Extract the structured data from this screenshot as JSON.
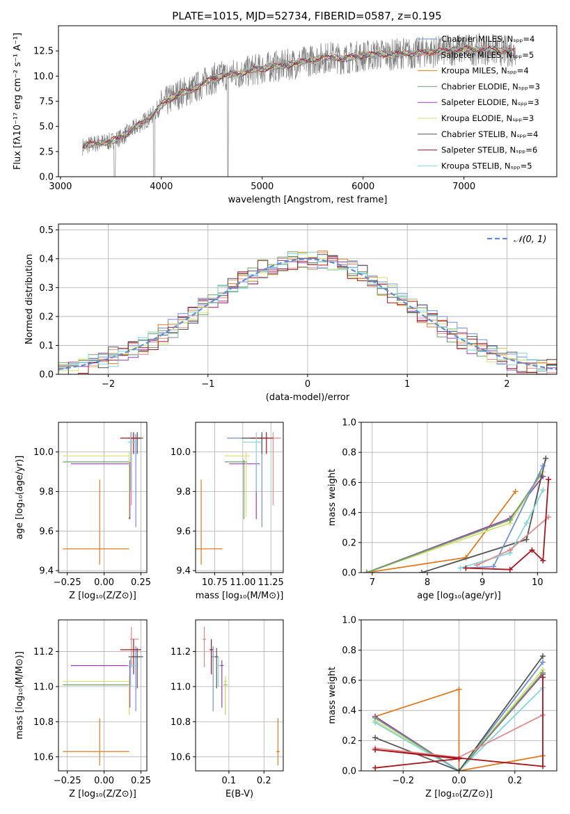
{
  "title": "PLATE=1015, MJD=52734, FIBERID=0587, z=0.195",
  "colors": {
    "chabrier_miles": "#6f8fd8",
    "salpeter_miles": "#e08a8a",
    "kroupa_miles": "#e07b20",
    "chabrier_elodie": "#6aa36a",
    "salpeter_elodie": "#9a3fb0",
    "kroupa_elodie": "#d8df6a",
    "chabrier_stelib": "#555555",
    "salpeter_stelib": "#a8141c",
    "kroupa_stelib": "#7fd6df",
    "data": "#808080",
    "pink": "#e88ac0",
    "normal": "#5b8ed6"
  },
  "chart_data": [
    {
      "id": "spectrum",
      "type": "line",
      "xlabel": "wavelength [Angstrom, rest frame]",
      "ylabel": "Flux [fλ10⁻¹⁷ erg cm⁻² s⁻¹ A⁻¹]",
      "xlim": [
        2980,
        7920
      ],
      "ylim": [
        0,
        15
      ],
      "xticks": [
        "3000",
        "4000",
        "5000",
        "6000",
        "7000"
      ],
      "xtick_values": [
        3000,
        4000,
        5000,
        6000,
        7000
      ],
      "yticks": [
        "0.0",
        "2.5",
        "5.0",
        "7.5",
        "10.0",
        "12.5"
      ],
      "ytick_values": [
        0,
        2.5,
        5,
        7.5,
        10,
        12.5
      ],
      "x": [
        3220,
        3300,
        3400,
        3500,
        3600,
        3700,
        3800,
        3900,
        4000,
        4100,
        4200,
        4300,
        4400,
        4500,
        4600,
        4700,
        4800,
        4900,
        5000,
        5100,
        5200,
        5300,
        5400,
        5500,
        5600,
        5700,
        5800,
        5900,
        6000,
        6100,
        6200,
        6300,
        6400,
        6500,
        6600,
        6700,
        6800,
        6900,
        7000,
        7100,
        7200,
        7300,
        7400,
        7500
      ],
      "model_y": [
        3.0,
        3.2,
        3.4,
        3.5,
        3.9,
        4.6,
        5.3,
        6.0,
        7.1,
        7.8,
        8.4,
        8.6,
        9.2,
        9.7,
        10.0,
        10.2,
        10.3,
        10.6,
        10.7,
        11.0,
        11.0,
        11.2,
        11.4,
        11.6,
        11.8,
        11.9,
        11.7,
        11.9,
        12.0,
        12.1,
        12.2,
        12.1,
        12.3,
        12.2,
        12.4,
        12.4,
        12.5,
        12.6,
        12.7,
        12.6,
        12.7,
        12.6,
        12.5,
        12.4
      ],
      "legend": [
        {
          "label": "Chabrier MILES, Nₛₚₚ=4",
          "color_key": "chabrier_miles"
        },
        {
          "label": "Salpeter MILES, Nₛₚₚ=5",
          "color_key": "salpeter_miles"
        },
        {
          "label": "Kroupa MILES, Nₛₚₚ=4",
          "color_key": "kroupa_miles"
        },
        {
          "label": "Chabrier ELODIE, Nₛₚₚ=3",
          "color_key": "chabrier_elodie"
        },
        {
          "label": "Salpeter ELODIE, Nₛₚₚ=3",
          "color_key": "salpeter_elodie"
        },
        {
          "label": "Kroupa ELODIE, Nₛₚₚ=3",
          "color_key": "kroupa_elodie"
        },
        {
          "label": "Chabrier STELIB, Nₛₚₚ=4",
          "color_key": "chabrier_stelib"
        },
        {
          "label": "Salpeter STELIB, Nₛₚₚ=6",
          "color_key": "salpeter_stelib"
        },
        {
          "label": "Kroupa STELIB, Nₛₚₚ=5",
          "color_key": "kroupa_stelib"
        }
      ]
    },
    {
      "id": "residuals",
      "type": "bar",
      "xlabel": "(data-model)/error",
      "ylabel": "Normed distribution",
      "xlim": [
        -2.5,
        2.5
      ],
      "ylim": [
        0,
        0.52
      ],
      "xticks": [
        "−2",
        "−1",
        "0",
        "1",
        "2"
      ],
      "xtick_values": [
        -2,
        -1,
        0,
        1,
        2
      ],
      "yticks": [
        "0.0",
        "0.1",
        "0.2",
        "0.3",
        "0.4",
        "0.5"
      ],
      "ytick_values": [
        0,
        0.1,
        0.2,
        0.3,
        0.4,
        0.5
      ],
      "bin_width": 0.1,
      "legend_label": "𝒩(0, 1)",
      "series": [
        {
          "color_key": "chabrier_miles",
          "values": [
            0.02,
            0.03,
            0.04,
            0.05,
            0.06,
            0.07,
            0.09,
            0.1,
            0.12,
            0.14,
            0.16,
            0.19,
            0.21,
            0.23,
            0.24,
            0.26,
            0.28,
            0.3,
            0.32,
            0.34,
            0.36,
            0.37,
            0.38,
            0.39,
            0.4,
            0.4,
            0.4,
            0.39,
            0.38,
            0.37,
            0.35,
            0.34,
            0.32,
            0.3,
            0.28,
            0.26,
            0.24,
            0.22,
            0.2,
            0.18,
            0.16,
            0.14,
            0.12,
            0.1,
            0.09,
            0.07,
            0.06,
            0.05,
            0.04,
            0.03
          ]
        }
      ]
    },
    {
      "id": "age_vs_Z",
      "type": "scatter",
      "xlabel": "Z [log₁₀(Z/Z⊙)]",
      "ylabel": "age  [log₁₀(age/yr)]",
      "xlim": [
        -0.31,
        0.29
      ],
      "ylim": [
        9.39,
        10.15
      ],
      "xticks": [
        "−0.25",
        "0.00",
        "0.25"
      ],
      "xtick_values": [
        -0.25,
        0,
        0.25
      ],
      "yticks": [
        "9.4",
        "9.6",
        "9.8",
        "10.0"
      ],
      "ytick_values": [
        9.4,
        9.6,
        9.8,
        10.0
      ]
    },
    {
      "id": "age_vs_mass",
      "type": "scatter",
      "xlabel": "mass [log₁₀(M/M⊙)]",
      "xlim": [
        10.58,
        11.36
      ],
      "ylim": [
        9.39,
        10.15
      ],
      "xticks": [
        "10.75",
        "11.00",
        "11.25"
      ],
      "xtick_values": [
        10.75,
        11.0,
        11.25
      ],
      "yticks": [
        "9.4",
        "9.6",
        "9.8",
        "10.0"
      ],
      "ytick_values": [
        9.4,
        9.6,
        9.8,
        10.0
      ]
    },
    {
      "id": "weight_vs_age",
      "type": "line",
      "xlabel": "age  [log₁₀(age/yr)]",
      "ylabel": "mass weight",
      "xlim": [
        6.8,
        10.35
      ],
      "ylim": [
        0,
        1.0
      ],
      "xticks": [
        "7",
        "8",
        "9",
        "10"
      ],
      "xtick_values": [
        7,
        8,
        9,
        10
      ],
      "yticks": [
        "0.0",
        "0.2",
        "0.4",
        "0.6",
        "0.8",
        "1.0"
      ],
      "ytick_values": [
        0,
        0.2,
        0.4,
        0.6,
        0.8,
        1.0
      ]
    },
    {
      "id": "mass_vs_Z",
      "type": "scatter",
      "xlabel": "Z [log₁₀(Z/Z⊙)]",
      "ylabel": "mass [log₁₀(M/M⊙)]",
      "xlim": [
        -0.31,
        0.29
      ],
      "ylim": [
        10.52,
        11.38
      ],
      "xticks": [
        "−0.25",
        "0.00",
        "0.25"
      ],
      "xtick_values": [
        -0.25,
        0,
        0.25
      ],
      "yticks": [
        "10.6",
        "10.8",
        "11.0",
        "11.2"
      ],
      "ytick_values": [
        10.6,
        10.8,
        11.0,
        11.2
      ]
    },
    {
      "id": "mass_vs_ebv",
      "type": "scatter",
      "xlabel": "E(B-V)",
      "xlim": [
        0.005,
        0.255
      ],
      "ylim": [
        10.52,
        11.38
      ],
      "xticks": [
        "0.1",
        "0.2"
      ],
      "xtick_values": [
        0.1,
        0.2
      ],
      "yticks": [
        "10.6",
        "10.8",
        "11.0",
        "11.2"
      ],
      "ytick_values": [
        10.6,
        10.8,
        11.0,
        11.2
      ]
    },
    {
      "id": "weight_vs_Z",
      "type": "line",
      "xlabel": "Z [log₁₀(Z/Z⊙)]",
      "ylabel": "mass weight",
      "xlim": [
        -0.35,
        0.35
      ],
      "ylim": [
        0,
        1.0
      ],
      "xticks": [
        "−0.2",
        "0.0",
        "0.2"
      ],
      "xtick_values": [
        -0.2,
        0,
        0.2
      ],
      "yticks": [
        "0.0",
        "0.2",
        "0.4",
        "0.6",
        "0.8",
        "1.0"
      ],
      "ytick_values": [
        0,
        0.2,
        0.4,
        0.6,
        0.8,
        1.0
      ]
    }
  ],
  "fit_results": [
    {
      "key": "chabrier_miles",
      "Z": 0.215,
      "Zerr": [
        0.03,
        0.03
      ],
      "age": 10.07,
      "age_err": [
        0.45,
        0.02
      ],
      "mass": 11.17,
      "mass_err": [
        0.31,
        0.06
      ],
      "ebv": 0.055,
      "ebv_err": 0.01
    },
    {
      "key": "salpeter_miles",
      "Z": 0.185,
      "Zerr": [
        0.01,
        0.05
      ],
      "age": 10.07,
      "age_err": [
        0.34,
        0.03
      ],
      "mass": 11.27,
      "mass_err": [
        0.16,
        0.07
      ],
      "ebv": 0.03,
      "ebv_err": 0.01
    },
    {
      "key": "kroupa_miles",
      "Z": -0.03,
      "Zerr": [
        0.25,
        0.2
      ],
      "age": 9.51,
      "age_err": [
        0.08,
        0.35
      ],
      "mass": 10.63,
      "mass_err": [
        0.08,
        0.19
      ],
      "ebv": 0.24,
      "ebv_err": 0.01
    },
    {
      "key": "chabrier_elodie",
      "Z": 0.17,
      "Zerr": [
        0.45,
        0.0
      ],
      "age": 9.95,
      "age_err": [
        0.29,
        0.01
      ],
      "mass": 11.01,
      "mass_err": [
        0.17,
        0.03
      ],
      "ebv": 0.09,
      "ebv_err": 0.01
    },
    {
      "key": "salpeter_elodie",
      "Z": 0.175,
      "Zerr": [
        0.4,
        0.0
      ],
      "age": 9.94,
      "age_err": [
        0.28,
        0.01
      ],
      "mass": 11.12,
      "mass_err": [
        0.24,
        0.03
      ],
      "ebv": 0.08,
      "ebv_err": 0.01
    },
    {
      "key": "kroupa_elodie",
      "Z": 0.17,
      "Zerr": [
        0.45,
        0.0
      ],
      "age": 9.98,
      "age_err": [
        0.31,
        0.02
      ],
      "mass": 11.03,
      "mass_err": [
        0.19,
        0.03
      ],
      "ebv": 0.09,
      "ebv_err": 0.01
    },
    {
      "key": "chabrier_stelib",
      "Z": 0.225,
      "Zerr": [
        0.06,
        0.04
      ],
      "age": 10.07,
      "age_err": [
        0.08,
        0.03
      ],
      "mass": 11.17,
      "mass_err": [
        0.18,
        0.05
      ],
      "ebv": 0.065,
      "ebv_err": 0.01
    },
    {
      "key": "salpeter_stelib",
      "Z": 0.2,
      "Zerr": [
        0.09,
        0.05
      ],
      "age": 10.07,
      "age_err": [
        0.08,
        0.03
      ],
      "mass": 11.21,
      "mass_err": [
        0.14,
        0.06
      ],
      "ebv": 0.05,
      "ebv_err": 0.01
    },
    {
      "key": "kroupa_stelib",
      "Z": 0.18,
      "Zerr": [
        0.02,
        0.04
      ],
      "age": 10.05,
      "age_err": [
        0.25,
        0.05
      ],
      "mass": 11.12,
      "mass_err": [
        0.12,
        0.05
      ],
      "ebv": 0.07,
      "ebv_err": 0.01
    }
  ],
  "weights_age": [
    {
      "key": "kroupa_miles",
      "pts": [
        [
          6.9,
          0.0
        ],
        [
          8.7,
          0.1
        ],
        [
          9.6,
          0.54
        ]
      ]
    },
    {
      "key": "salpeter_elodie",
      "pts": [
        [
          6.9,
          0.0
        ],
        [
          9.5,
          0.36
        ],
        [
          10.1,
          0.64
        ]
      ]
    },
    {
      "key": "kroupa_elodie",
      "pts": [
        [
          6.9,
          0.0
        ],
        [
          9.5,
          0.33
        ],
        [
          10.1,
          0.67
        ]
      ]
    },
    {
      "key": "chabrier_elodie",
      "pts": [
        [
          6.9,
          0.0
        ],
        [
          9.5,
          0.35
        ],
        [
          10.05,
          0.65
        ]
      ]
    },
    {
      "key": "chabrier_stelib",
      "pts": [
        [
          7.9,
          0.0
        ],
        [
          9.8,
          0.22
        ],
        [
          10.15,
          0.76
        ]
      ]
    },
    {
      "key": "chabrier_miles",
      "pts": [
        [
          8.7,
          0.03
        ],
        [
          9.2,
          0.04
        ],
        [
          10.1,
          0.71
        ]
      ]
    },
    {
      "key": "kroupa_stelib",
      "pts": [
        [
          8.6,
          0.03
        ],
        [
          9.5,
          0.13
        ],
        [
          9.8,
          0.33
        ],
        [
          10.1,
          0.55
        ]
      ]
    },
    {
      "key": "salpeter_miles",
      "pts": [
        [
          8.9,
          0.05
        ],
        [
          9.5,
          0.15
        ],
        [
          10.2,
          0.37
        ]
      ]
    },
    {
      "key": "salpeter_stelib",
      "pts": [
        [
          8.7,
          0.03
        ],
        [
          9.5,
          0.02
        ],
        [
          9.9,
          0.15
        ],
        [
          10.1,
          0.08
        ],
        [
          10.2,
          0.62
        ]
      ]
    }
  ],
  "weights_Z": [
    {
      "key": "kroupa_miles",
      "pts": [
        [
          -0.3,
          0.36
        ],
        [
          0.0,
          0.54
        ],
        [
          0.0,
          0.0
        ],
        [
          0.3,
          0.1
        ]
      ]
    },
    {
      "key": "chabrier_miles",
      "pts": [
        [
          -0.3,
          0.33
        ],
        [
          0.0,
          0.0
        ],
        [
          0.3,
          0.72
        ]
      ]
    },
    {
      "key": "salpeter_elodie",
      "pts": [
        [
          -0.3,
          0.36
        ],
        [
          0.0,
          0.0
        ],
        [
          0.3,
          0.64
        ]
      ]
    },
    {
      "key": "kroupa_elodie",
      "pts": [
        [
          -0.3,
          0.33
        ],
        [
          0.0,
          0.0
        ],
        [
          0.3,
          0.67
        ]
      ]
    },
    {
      "key": "chabrier_elodie",
      "pts": [
        [
          -0.3,
          0.35
        ],
        [
          0.0,
          0.0
        ],
        [
          0.3,
          0.65
        ]
      ]
    },
    {
      "key": "kroupa_stelib",
      "pts": [
        [
          -0.3,
          0.32
        ],
        [
          0.0,
          0.0
        ],
        [
          0.3,
          0.55
        ]
      ]
    },
    {
      "key": "chabrier_stelib",
      "pts": [
        [
          -0.3,
          0.22
        ],
        [
          0.0,
          0.0
        ],
        [
          0.3,
          0.76
        ]
      ]
    },
    {
      "key": "salpeter_miles",
      "pts": [
        [
          -0.3,
          0.15
        ],
        [
          0.0,
          0.09
        ],
        [
          0.3,
          0.37
        ]
      ]
    },
    {
      "key": "salpeter_stelib",
      "pts": [
        [
          -0.3,
          0.02
        ],
        [
          0.0,
          0.08
        ],
        [
          -0.3,
          0.14
        ],
        [
          0.3,
          0.03
        ],
        [
          0.3,
          0.62
        ]
      ]
    }
  ]
}
